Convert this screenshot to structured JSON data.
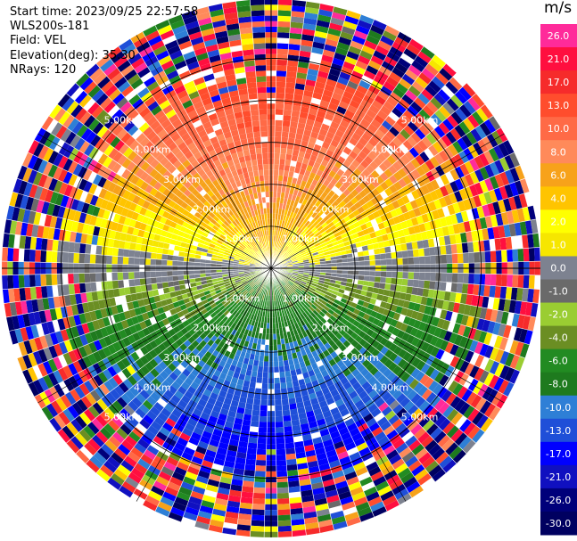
{
  "header": {
    "start_time": "Start time: 2023/09/25 22:57:58",
    "instrument": "WLS200s-181",
    "field": "Field: VEL",
    "elevation": "Elevation(deg): 35.30",
    "nrays": "NRays: 120"
  },
  "colorbar": {
    "unit": "m/s",
    "ticks": [
      "26.0",
      "21.0",
      "17.0",
      "13.0",
      "10.0",
      "8.0",
      "6.0",
      "4.0",
      "2.0",
      "1.0",
      "0.0",
      "-1.0",
      "-2.0",
      "-4.0",
      "-6.0",
      "-8.0",
      "-10.0",
      "-13.0",
      "-17.0",
      "-21.0",
      "-26.0",
      "-30.0"
    ],
    "colors": [
      "#ff2b9a",
      "#ff0f3f",
      "#f62b2b",
      "#ff4d2d",
      "#ff6a46",
      "#ff8a5a",
      "#f7a21a",
      "#ffc400",
      "#ffff00",
      "#f6e600",
      "#7d8290",
      "#6a6a6a",
      "#9acd32",
      "#6b8e23",
      "#228b22",
      "#1e7a1e",
      "#2e7fd6",
      "#1f4fd8",
      "#0000ff",
      "#1010c0",
      "#00007a",
      "#000060"
    ]
  },
  "chart_data": {
    "type": "ppi",
    "field": "VEL",
    "nrays": 120,
    "elevation_deg": 35.3,
    "range_rings_km": [
      1.0,
      2.0,
      3.0,
      4.0,
      5.0
    ],
    "ring_label": "km",
    "ring_labels": [
      "1.00km",
      "2.00km",
      "3.00km",
      "4.00km",
      "5.00km"
    ],
    "velocity_pattern": {
      "north_half": "positive (1 to 17 m/s), strongest toward north",
      "south_half": "negative (-1 to -10 m/s), strongest toward south",
      "outer_ranges": "noisy / random values"
    },
    "vmin": -30.0,
    "vmax": 26.0
  }
}
